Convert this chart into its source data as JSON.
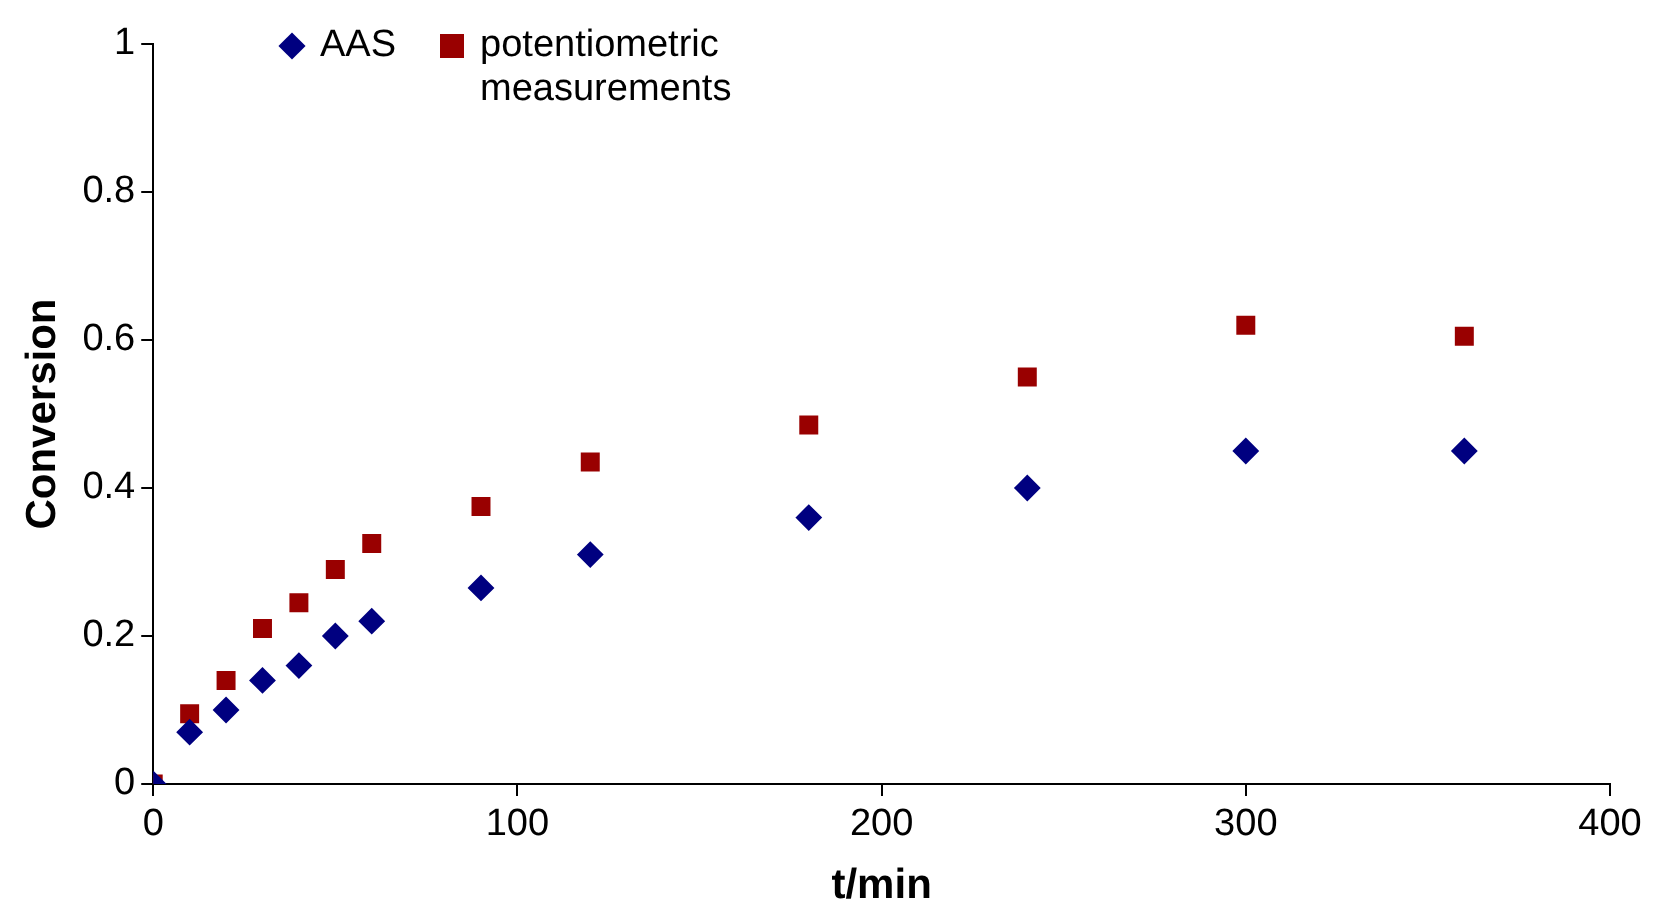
{
  "chart_data": {
    "type": "scatter",
    "xlabel": "t/min",
    "ylabel": "Conversion",
    "xlim": [
      0,
      400
    ],
    "xticks": [
      0,
      100,
      200,
      300,
      400
    ],
    "ylim": [
      0,
      1
    ],
    "yticks": [
      0,
      0.2,
      0.4,
      0.6,
      0.8,
      1
    ],
    "grid": false,
    "legend": "top left",
    "series": [
      {
        "name": "AAS",
        "color": "#000080",
        "marker": "diamond",
        "x": [
          0,
          10,
          20,
          30,
          40,
          50,
          60,
          90,
          120,
          180,
          240,
          300,
          360
        ],
        "values": [
          0,
          0.07,
          0.1,
          0.14,
          0.16,
          0.2,
          0.22,
          0.265,
          0.31,
          0.36,
          0.4,
          0.45,
          0.45
        ]
      },
      {
        "name": "potentiometric measurements",
        "color": "#990000",
        "marker": "square",
        "x": [
          0,
          10,
          20,
          30,
          40,
          50,
          60,
          90,
          120,
          180,
          240,
          300,
          360
        ],
        "values": [
          0,
          0.095,
          0.14,
          0.21,
          0.245,
          0.29,
          0.325,
          0.375,
          0.435,
          0.485,
          0.55,
          0.62,
          0.605
        ]
      }
    ]
  }
}
